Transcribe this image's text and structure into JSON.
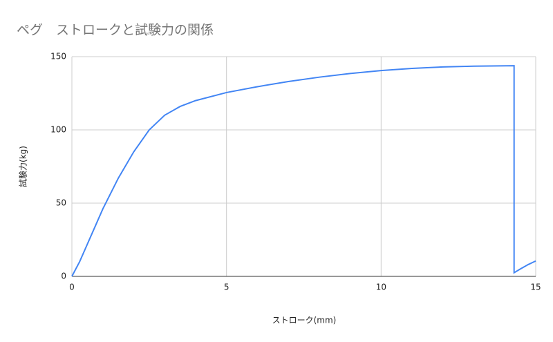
{
  "chart_data": {
    "type": "line",
    "title": "ペグ　ストロークと試験力の関係",
    "x_label": "ストローク(mm)",
    "y_label": "試験力(kg)",
    "x": [
      0,
      0.25,
      0.5,
      0.75,
      1,
      1.5,
      2,
      2.5,
      3,
      3.5,
      4,
      5,
      6,
      7,
      8,
      9,
      10,
      11,
      12,
      13,
      14.3,
      14.3,
      14.5,
      14.75,
      15
    ],
    "series": [
      {
        "name": "試験力(kg)",
        "color": "#4285f4",
        "values": [
          0,
          10,
          22,
          34,
          46,
          67,
          85,
          100,
          110,
          116,
          120,
          125.5,
          129.5,
          133,
          136,
          138.5,
          140.5,
          142,
          143,
          143.5,
          143.8,
          2.5,
          5,
          8,
          10.5
        ]
      }
    ],
    "xlim": [
      0,
      15
    ],
    "xticks": [
      0,
      5,
      10,
      15
    ],
    "ylim": [
      0,
      150
    ],
    "yticks": [
      0,
      50,
      100,
      150
    ],
    "grid": true
  }
}
